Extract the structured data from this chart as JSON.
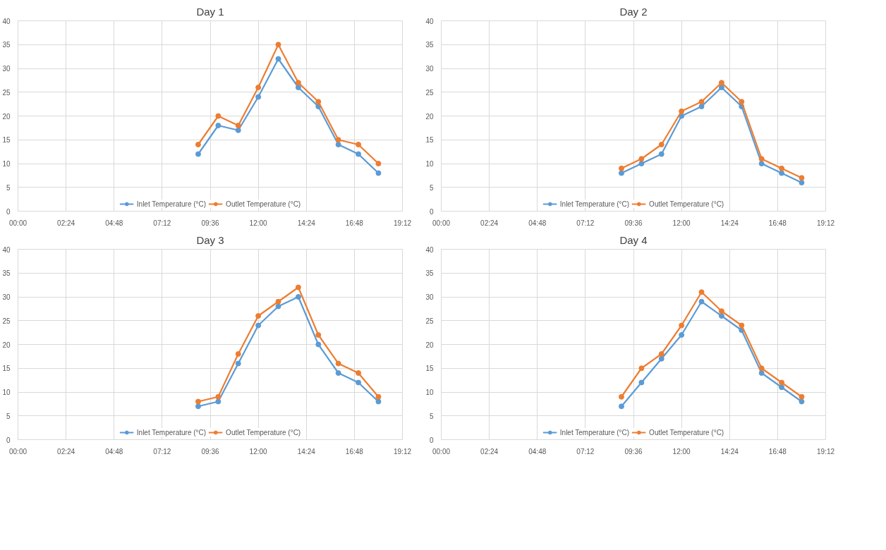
{
  "chart_data": [
    {
      "type": "line",
      "title": "Day 1",
      "x": [
        9,
        10,
        11,
        12,
        13,
        14,
        15,
        16,
        17,
        18
      ],
      "xlim": [
        0,
        19.2
      ],
      "xticks": [
        {
          "value": 0,
          "label": "00:00"
        },
        {
          "value": 2.4,
          "label": "02:24"
        },
        {
          "value": 4.8,
          "label": "04:48"
        },
        {
          "value": 7.2,
          "label": "07:12"
        },
        {
          "value": 9.6,
          "label": "09:36"
        },
        {
          "value": 12,
          "label": "12:00"
        },
        {
          "value": 14.4,
          "label": "14:24"
        },
        {
          "value": 16.8,
          "label": "16:48"
        },
        {
          "value": 19.2,
          "label": "19:12"
        }
      ],
      "ylim": [
        0,
        40
      ],
      "yticks": [
        0,
        5,
        10,
        15,
        20,
        25,
        30,
        35,
        40
      ],
      "grid": true,
      "legend": "bottom",
      "marker": "circle",
      "line_style": "solid",
      "series": [
        {
          "name": "Inlet Temperature (°C)",
          "color": "#5b9bd5",
          "values": [
            12,
            18,
            17,
            24,
            32,
            26,
            22,
            14,
            12,
            8
          ]
        },
        {
          "name": "Outlet Temperature (°C)",
          "color": "#ed7d31",
          "values": [
            14,
            20,
            18,
            26,
            35,
            27,
            23,
            15,
            14,
            10
          ]
        }
      ]
    },
    {
      "type": "line",
      "title": "Day 2",
      "x": [
        9,
        10,
        11,
        12,
        13,
        14,
        15,
        16,
        17,
        18
      ],
      "xlim": [
        0,
        19.2
      ],
      "xticks": [
        {
          "value": 0,
          "label": "00:00"
        },
        {
          "value": 2.4,
          "label": "02:24"
        },
        {
          "value": 4.8,
          "label": "04:48"
        },
        {
          "value": 7.2,
          "label": "07:12"
        },
        {
          "value": 9.6,
          "label": "09:36"
        },
        {
          "value": 12,
          "label": "12:00"
        },
        {
          "value": 14.4,
          "label": "14:24"
        },
        {
          "value": 16.8,
          "label": "16:48"
        },
        {
          "value": 19.2,
          "label": "19:12"
        }
      ],
      "ylim": [
        0,
        40
      ],
      "yticks": [
        0,
        5,
        10,
        15,
        20,
        25,
        30,
        35,
        40
      ],
      "grid": true,
      "legend": "bottom",
      "marker": "circle",
      "line_style": "solid",
      "series": [
        {
          "name": "Inlet Temperature (°C)",
          "color": "#5b9bd5",
          "values": [
            8,
            10,
            12,
            20,
            22,
            26,
            22,
            10,
            8,
            6
          ]
        },
        {
          "name": "Outlet Temperature (°C)",
          "color": "#ed7d31",
          "values": [
            9,
            11,
            14,
            21,
            23,
            27,
            23,
            11,
            9,
            7
          ]
        }
      ]
    },
    {
      "type": "line",
      "title": "Day 3",
      "x": [
        9,
        10,
        11,
        12,
        13,
        14,
        15,
        16,
        17,
        18
      ],
      "xlim": [
        0,
        19.2
      ],
      "xticks": [
        {
          "value": 0,
          "label": "00:00"
        },
        {
          "value": 2.4,
          "label": "02:24"
        },
        {
          "value": 4.8,
          "label": "04:48"
        },
        {
          "value": 7.2,
          "label": "07:12"
        },
        {
          "value": 9.6,
          "label": "09:36"
        },
        {
          "value": 12,
          "label": "12:00"
        },
        {
          "value": 14.4,
          "label": "14:24"
        },
        {
          "value": 16.8,
          "label": "16:48"
        },
        {
          "value": 19.2,
          "label": "19:12"
        }
      ],
      "ylim": [
        0,
        40
      ],
      "yticks": [
        0,
        5,
        10,
        15,
        20,
        25,
        30,
        35,
        40
      ],
      "grid": true,
      "legend": "bottom",
      "marker": "circle",
      "line_style": "solid",
      "series": [
        {
          "name": "Inlet Temperature (°C)",
          "color": "#5b9bd5",
          "values": [
            7,
            8,
            16,
            24,
            28,
            30,
            20,
            14,
            12,
            8
          ]
        },
        {
          "name": "Outlet Temperature (°C)",
          "color": "#ed7d31",
          "values": [
            8,
            9,
            18,
            26,
            29,
            32,
            22,
            16,
            14,
            9
          ]
        }
      ]
    },
    {
      "type": "line",
      "title": "Day 4",
      "x": [
        9,
        10,
        11,
        12,
        13,
        14,
        15,
        16,
        17,
        18
      ],
      "xlim": [
        0,
        19.2
      ],
      "xticks": [
        {
          "value": 0,
          "label": "00:00"
        },
        {
          "value": 2.4,
          "label": "02:24"
        },
        {
          "value": 4.8,
          "label": "04:48"
        },
        {
          "value": 7.2,
          "label": "07:12"
        },
        {
          "value": 9.6,
          "label": "09:36"
        },
        {
          "value": 12,
          "label": "12:00"
        },
        {
          "value": 14.4,
          "label": "14:24"
        },
        {
          "value": 16.8,
          "label": "16:48"
        },
        {
          "value": 19.2,
          "label": "19:12"
        }
      ],
      "ylim": [
        0,
        40
      ],
      "yticks": [
        0,
        5,
        10,
        15,
        20,
        25,
        30,
        35,
        40
      ],
      "grid": true,
      "legend": "bottom",
      "marker": "circle",
      "line_style": "solid",
      "series": [
        {
          "name": "Inlet Temperature (°C)",
          "color": "#5b9bd5",
          "values": [
            7,
            12,
            17,
            22,
            29,
            26,
            23,
            14,
            11,
            8
          ]
        },
        {
          "name": "Outlet Temperature (°C)",
          "color": "#ed7d31",
          "values": [
            9,
            15,
            18,
            24,
            31,
            27,
            24,
            15,
            12,
            9
          ]
        }
      ]
    }
  ]
}
